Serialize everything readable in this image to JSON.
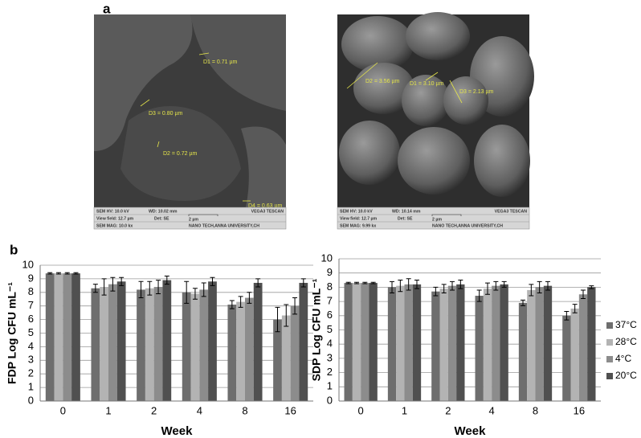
{
  "panel_labels": [
    "a",
    "b"
  ],
  "sem_images": [
    {
      "annotations": [
        "D1 = 0.71 µm",
        "D3 = 0.80 µm",
        "D2 = 0.72 µm",
        "D4 = 0.63 µm"
      ],
      "info": [
        "SEM HV: 10.0 kV",
        "WD: 10.02 mm",
        "VEGA3 TESCAN",
        "View field: 12.7 µm",
        "Det: SE",
        "2 µm",
        "SEM MAG: 10.0 kx",
        "NANO TECH,ANNA UNIVERSITY,CH"
      ]
    },
    {
      "annotations": [
        "D2 = 3.56 µm",
        "D1 = 3.10 µm",
        "D3 = 2.13 µm"
      ],
      "info": [
        "SEM HV: 10.0 kV",
        "WD: 10.14 mm",
        "VEGA3 TESCAN",
        "View field: 12.7 µm",
        "Det: SE",
        "2 µm",
        "SEM MAG: 9.99 kx",
        "NANO TECH,ANNA UNIVERSITY,CH"
      ]
    }
  ],
  "chart_data": [
    {
      "type": "bar",
      "x_label": "Week",
      "y_label": "FDP Log CFU mL⁻¹",
      "categories": [
        "0",
        "1",
        "2",
        "4",
        "8",
        "16"
      ],
      "ylim": [
        0,
        10
      ],
      "yticks": [
        0,
        1,
        2,
        3,
        4,
        5,
        6,
        7,
        8,
        9,
        10
      ],
      "grid": true,
      "series": [
        {
          "color": "#6e6e6e",
          "values": [
            9.4,
            8.3,
            8.2,
            8.0,
            7.1,
            6.0
          ],
          "errors": [
            0.05,
            0.3,
            0.6,
            0.8,
            0.3,
            0.9
          ]
        },
        {
          "color": "#b3b3b3",
          "values": [
            9.4,
            8.4,
            8.3,
            7.9,
            7.3,
            6.3
          ],
          "errors": [
            0.05,
            0.6,
            0.5,
            0.4,
            0.4,
            0.8
          ]
        },
        {
          "color": "#8c8c8c",
          "values": [
            9.4,
            8.6,
            8.4,
            8.2,
            7.6,
            7.0
          ],
          "errors": [
            0.05,
            0.5,
            0.5,
            0.5,
            0.4,
            0.6
          ]
        },
        {
          "color": "#505050",
          "values": [
            9.4,
            8.8,
            8.9,
            8.8,
            8.7,
            8.7
          ],
          "errors": [
            0.05,
            0.3,
            0.3,
            0.3,
            0.3,
            0.3
          ]
        }
      ]
    },
    {
      "type": "bar",
      "x_label": "Week",
      "y_label": "SDP Log CFU mL⁻¹",
      "categories": [
        "0",
        "1",
        "2",
        "4",
        "8",
        "16"
      ],
      "ylim": [
        0,
        10
      ],
      "yticks": [
        0,
        1,
        2,
        3,
        4,
        5,
        6,
        7,
        8,
        9,
        10
      ],
      "grid": true,
      "legend": "right",
      "series": [
        {
          "name": "37°C",
          "color": "#6e6e6e",
          "values": [
            8.3,
            8.0,
            7.7,
            7.4,
            6.9,
            6.0
          ],
          "errors": [
            0.05,
            0.4,
            0.3,
            0.4,
            0.2,
            0.3
          ]
        },
        {
          "name": "28°C",
          "color": "#b3b3b3",
          "values": [
            8.3,
            8.1,
            7.9,
            7.9,
            7.8,
            6.5
          ],
          "errors": [
            0.05,
            0.4,
            0.3,
            0.4,
            0.4,
            0.3
          ]
        },
        {
          "name": "4°C",
          "color": "#8c8c8c",
          "values": [
            8.3,
            8.2,
            8.1,
            8.1,
            8.0,
            7.5
          ],
          "errors": [
            0.05,
            0.4,
            0.3,
            0.3,
            0.4,
            0.3
          ]
        },
        {
          "name": "20°C",
          "color": "#505050",
          "values": [
            8.3,
            8.2,
            8.2,
            8.2,
            8.1,
            8.0
          ],
          "errors": [
            0.05,
            0.3,
            0.3,
            0.2,
            0.3,
            0.1
          ]
        }
      ]
    }
  ]
}
